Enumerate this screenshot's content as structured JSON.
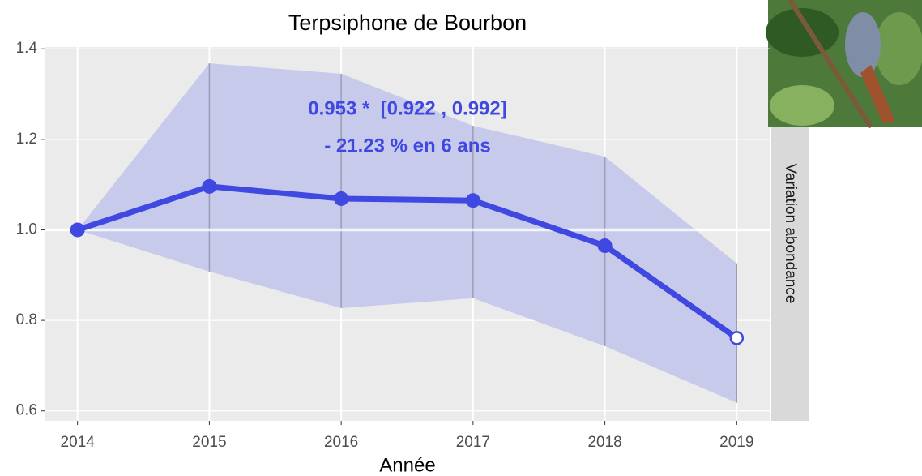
{
  "chart_data": {
    "type": "line",
    "title": "Terpsiphone de Bourbon",
    "xlabel": "Année",
    "strip_label": "Variation abondance",
    "annotations": [
      "0.953 *  [0.922 , 0.992]",
      "- 21.23 % en 6 ans"
    ],
    "x": [
      2014,
      2015,
      2016,
      2017,
      2018,
      2019
    ],
    "series": [
      {
        "color": "#3f48e0",
        "values": [
          1.0,
          1.096,
          1.069,
          1.065,
          0.965,
          0.761
        ],
        "upper": [
          1.0,
          1.368,
          1.345,
          1.23,
          1.162,
          0.926
        ],
        "lower": [
          1.0,
          0.908,
          0.827,
          0.849,
          0.743,
          0.618
        ]
      }
    ],
    "ribbon_color": "#c8caec",
    "last_point_open": true,
    "reference_line": 1.0,
    "xlim": [
      2013.75,
      2019.25
    ],
    "ylim": [
      0.578,
      1.404
    ],
    "xticks": [
      2014,
      2015,
      2016,
      2017,
      2018,
      2019
    ],
    "yticks": [
      {
        "value": 0.6,
        "label": "0.6"
      },
      {
        "value": 0.8,
        "label": "0.8"
      },
      {
        "value": 1.0,
        "label": "1.0"
      },
      {
        "value": 1.2,
        "label": "1.2"
      },
      {
        "value": 1.4,
        "label": "1.4"
      }
    ],
    "grid": true
  }
}
